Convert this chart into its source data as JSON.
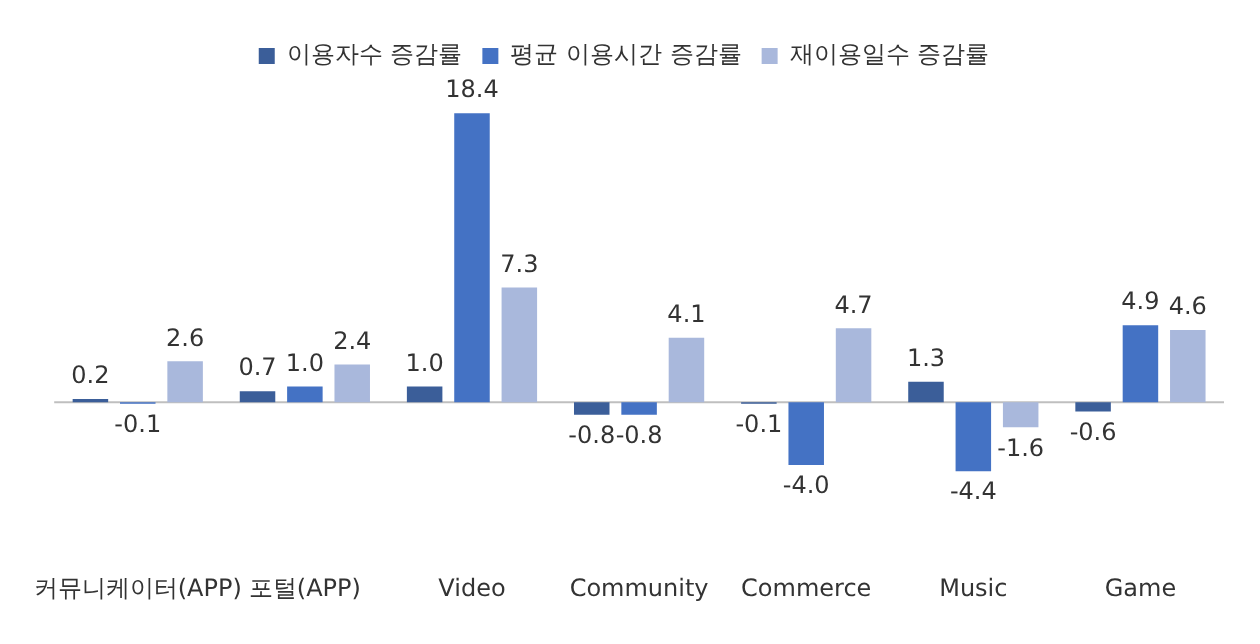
{
  "chart_data": {
    "type": "bar",
    "categories": [
      "커뮤니케이터(APP)",
      "포털(APP)",
      "Video",
      "Community",
      "Commerce",
      "Music",
      "Game"
    ],
    "series": [
      {
        "name": "이용자수 증감률",
        "color": "#3b5e99",
        "values": [
          0.2,
          0.7,
          1.0,
          -0.8,
          -0.1,
          1.3,
          -0.6
        ],
        "value_labels": [
          "0.2",
          "0.7",
          "1.0",
          "-0.8",
          "-0.1",
          "1.3",
          "-0.6"
        ]
      },
      {
        "name": "평균 이용시간 증감률",
        "color": "#4472c4",
        "values": [
          -0.1,
          1.0,
          18.4,
          -0.8,
          -4.0,
          -4.4,
          4.9
        ],
        "value_labels": [
          "-0.1",
          "1.0",
          "18.4",
          "-0.8",
          "-4.0",
          "-4.4",
          "4.9"
        ]
      },
      {
        "name": "재이용일수 증감률",
        "color": "#a9b8dc",
        "values": [
          2.6,
          2.4,
          7.3,
          4.1,
          4.7,
          -1.6,
          4.6
        ],
        "value_labels": [
          "2.6",
          "2.4",
          "7.3",
          "4.1",
          "4.7",
          "-1.6",
          "4.6"
        ]
      }
    ],
    "tick_labels": "x",
    "legend": "top"
  }
}
